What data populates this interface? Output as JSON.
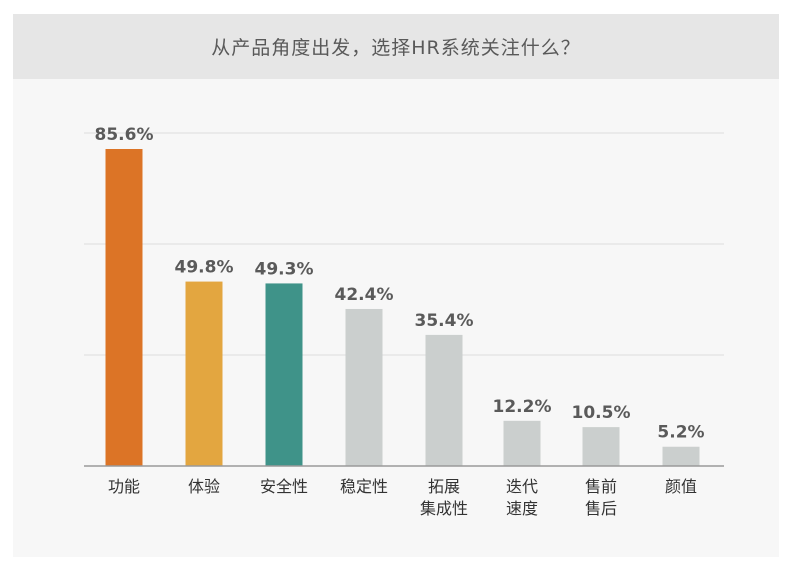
{
  "header": {
    "title": "从产品角度出发，选择HR系统关注什么？"
  },
  "chart_data": {
    "type": "bar",
    "title": "从产品角度出发，选择HR系统关注什么？",
    "categories": [
      "功能",
      "体验",
      "安全性",
      "稳定性",
      "拓展集成性",
      "迭代速度",
      "售前售后",
      "颜值"
    ],
    "category_lines": [
      [
        "功能"
      ],
      [
        "体验"
      ],
      [
        "安全性"
      ],
      [
        "稳定性"
      ],
      [
        "拓展",
        "集成性"
      ],
      [
        "迭代",
        "速度"
      ],
      [
        "售前",
        "售后"
      ],
      [
        "颜值"
      ]
    ],
    "values": [
      85.6,
      49.8,
      49.3,
      42.4,
      35.4,
      12.2,
      10.5,
      5.2
    ],
    "value_labels": [
      "85.6%",
      "49.8%",
      "49.3%",
      "42.4%",
      "35.4%",
      "12.2%",
      "10.5%",
      "5.2%"
    ],
    "colors": [
      "#dc7426",
      "#e3a640",
      "#3f9389",
      "#cbcfce",
      "#cbcfce",
      "#cbcfce",
      "#cbcfce",
      "#cbcfce"
    ],
    "ylim": [
      0,
      90
    ],
    "grid": true
  }
}
